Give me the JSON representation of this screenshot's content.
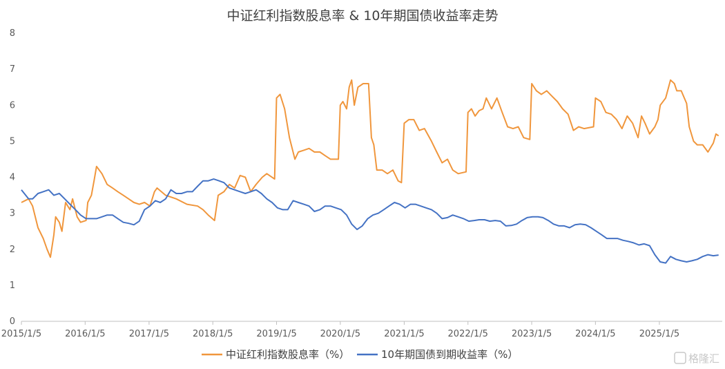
{
  "chart_data": {
    "type": "line",
    "title": "中证红利指数股息率 & 10年期国债收益率走势",
    "xlabel": "",
    "ylabel": "",
    "ylim": [
      0,
      8
    ],
    "y_ticks": [
      "0",
      "1",
      "2",
      "3",
      "4",
      "5",
      "6",
      "7",
      "8"
    ],
    "x_ticks": [
      "2015/1/5",
      "2016/1/5",
      "2017/1/5",
      "2018/1/5",
      "2019/1/5",
      "2020/1/5",
      "2021/1/5",
      "2022/1/5",
      "2023/1/5",
      "2024/1/5",
      "2025/1/5"
    ],
    "grid": false,
    "legend_position": "bottom",
    "series": [
      {
        "name": "中证红利指数股息率（%）",
        "color": "#F0963C",
        "points": [
          [
            "2015-01-05",
            3.3
          ],
          [
            "2015-02-15",
            3.4
          ],
          [
            "2015-03-10",
            3.2
          ],
          [
            "2015-04-10",
            2.6
          ],
          [
            "2015-05-10",
            2.3
          ],
          [
            "2015-06-01",
            2.0
          ],
          [
            "2015-06-20",
            1.78
          ],
          [
            "2015-07-10",
            2.4
          ],
          [
            "2015-07-20",
            2.9
          ],
          [
            "2015-08-10",
            2.75
          ],
          [
            "2015-08-25",
            2.5
          ],
          [
            "2015-09-15",
            3.3
          ],
          [
            "2015-10-10",
            3.1
          ],
          [
            "2015-10-25",
            3.4
          ],
          [
            "2015-11-20",
            2.9
          ],
          [
            "2015-12-10",
            2.75
          ],
          [
            "2016-01-10",
            2.8
          ],
          [
            "2016-01-20",
            3.3
          ],
          [
            "2016-02-10",
            3.5
          ],
          [
            "2016-02-25",
            3.9
          ],
          [
            "2016-03-10",
            4.3
          ],
          [
            "2016-04-10",
            4.1
          ],
          [
            "2016-05-10",
            3.8
          ],
          [
            "2016-06-10",
            3.7
          ],
          [
            "2016-07-10",
            3.6
          ],
          [
            "2016-08-10",
            3.5
          ],
          [
            "2016-09-10",
            3.4
          ],
          [
            "2016-10-10",
            3.3
          ],
          [
            "2016-11-10",
            3.25
          ],
          [
            "2016-12-10",
            3.3
          ],
          [
            "2017-01-10",
            3.2
          ],
          [
            "2017-02-05",
            3.6
          ],
          [
            "2017-02-20",
            3.7
          ],
          [
            "2017-04-10",
            3.5
          ],
          [
            "2017-06-10",
            3.4
          ],
          [
            "2017-08-10",
            3.25
          ],
          [
            "2017-10-10",
            3.2
          ],
          [
            "2017-11-10",
            3.1
          ],
          [
            "2017-12-10",
            2.95
          ],
          [
            "2018-01-15",
            2.8
          ],
          [
            "2018-02-05",
            3.5
          ],
          [
            "2018-03-10",
            3.6
          ],
          [
            "2018-04-10",
            3.8
          ],
          [
            "2018-05-10",
            3.7
          ],
          [
            "2018-06-10",
            4.05
          ],
          [
            "2018-07-10",
            4.0
          ],
          [
            "2018-08-10",
            3.6
          ],
          [
            "2018-09-10",
            3.8
          ],
          [
            "2018-10-15",
            4.0
          ],
          [
            "2018-11-10",
            4.1
          ],
          [
            "2018-12-25",
            3.95
          ],
          [
            "2019-01-05",
            6.2
          ],
          [
            "2019-01-25",
            6.3
          ],
          [
            "2019-02-20",
            5.9
          ],
          [
            "2019-03-20",
            5.1
          ],
          [
            "2019-04-20",
            4.5
          ],
          [
            "2019-05-10",
            4.7
          ],
          [
            "2019-06-10",
            4.75
          ],
          [
            "2019-07-10",
            4.8
          ],
          [
            "2019-08-10",
            4.7
          ],
          [
            "2019-09-10",
            4.7
          ],
          [
            "2019-10-10",
            4.6
          ],
          [
            "2019-11-10",
            4.5
          ],
          [
            "2019-12-25",
            4.5
          ],
          [
            "2020-01-05",
            6.0
          ],
          [
            "2020-01-20",
            6.1
          ],
          [
            "2020-02-10",
            5.9
          ],
          [
            "2020-02-25",
            6.5
          ],
          [
            "2020-03-10",
            6.7
          ],
          [
            "2020-03-25",
            6.0
          ],
          [
            "2020-04-15",
            6.5
          ],
          [
            "2020-05-15",
            6.6
          ],
          [
            "2020-06-15",
            6.6
          ],
          [
            "2020-07-01",
            5.1
          ],
          [
            "2020-07-15",
            4.9
          ],
          [
            "2020-08-01",
            4.2
          ],
          [
            "2020-09-01",
            4.2
          ],
          [
            "2020-10-01",
            4.1
          ],
          [
            "2020-11-01",
            4.2
          ],
          [
            "2020-12-01",
            3.9
          ],
          [
            "2020-12-20",
            3.85
          ],
          [
            "2021-01-05",
            5.5
          ],
          [
            "2021-02-01",
            5.6
          ],
          [
            "2021-03-01",
            5.6
          ],
          [
            "2021-04-01",
            5.3
          ],
          [
            "2021-05-01",
            5.35
          ],
          [
            "2021-06-10",
            5.0
          ],
          [
            "2021-07-10",
            4.7
          ],
          [
            "2021-08-10",
            4.4
          ],
          [
            "2021-09-10",
            4.5
          ],
          [
            "2021-10-10",
            4.2
          ],
          [
            "2021-11-10",
            4.1
          ],
          [
            "2021-12-25",
            4.15
          ],
          [
            "2022-01-05",
            5.8
          ],
          [
            "2022-01-25",
            5.9
          ],
          [
            "2022-02-15",
            5.7
          ],
          [
            "2022-03-10",
            5.85
          ],
          [
            "2022-04-01",
            5.9
          ],
          [
            "2022-04-20",
            6.2
          ],
          [
            "2022-05-20",
            5.9
          ],
          [
            "2022-06-20",
            6.2
          ],
          [
            "2022-07-20",
            5.8
          ],
          [
            "2022-08-20",
            5.4
          ],
          [
            "2022-09-20",
            5.35
          ],
          [
            "2022-10-20",
            5.4
          ],
          [
            "2022-11-20",
            5.1
          ],
          [
            "2022-12-25",
            5.05
          ],
          [
            "2023-01-05",
            6.6
          ],
          [
            "2023-02-01",
            6.4
          ],
          [
            "2023-03-01",
            6.3
          ],
          [
            "2023-04-01",
            6.4
          ],
          [
            "2023-05-01",
            6.25
          ],
          [
            "2023-06-01",
            6.1
          ],
          [
            "2023-07-01",
            5.9
          ],
          [
            "2023-08-01",
            5.75
          ],
          [
            "2023-09-01",
            5.3
          ],
          [
            "2023-10-01",
            5.4
          ],
          [
            "2023-11-01",
            5.35
          ],
          [
            "2023-12-25",
            5.4
          ],
          [
            "2024-01-05",
            6.2
          ],
          [
            "2024-02-05",
            6.1
          ],
          [
            "2024-03-05",
            5.8
          ],
          [
            "2024-04-05",
            5.75
          ],
          [
            "2024-05-05",
            5.6
          ],
          [
            "2024-06-05",
            5.35
          ],
          [
            "2024-07-05",
            5.7
          ],
          [
            "2024-08-05",
            5.5
          ],
          [
            "2024-09-05",
            5.1
          ],
          [
            "2024-09-25",
            5.7
          ],
          [
            "2024-10-15",
            5.5
          ],
          [
            "2024-11-10",
            5.2
          ],
          [
            "2024-12-10",
            5.4
          ],
          [
            "2024-12-28",
            5.6
          ],
          [
            "2025-01-10",
            6.0
          ],
          [
            "2025-02-10",
            6.2
          ],
          [
            "2025-03-10",
            6.7
          ],
          [
            "2025-04-01",
            6.6
          ],
          [
            "2025-04-15",
            6.4
          ],
          [
            "2025-05-10",
            6.4
          ],
          [
            "2025-06-10",
            6.05
          ],
          [
            "2025-06-25",
            5.4
          ],
          [
            "2025-07-20",
            5.0
          ],
          [
            "2025-08-10",
            4.9
          ],
          [
            "2025-09-10",
            4.9
          ],
          [
            "2025-10-10",
            4.7
          ],
          [
            "2025-11-10",
            4.95
          ],
          [
            "2025-11-25",
            5.2
          ],
          [
            "2025-12-10",
            5.15
          ]
        ]
      },
      {
        "name": "10年期国债到期收益率（%）",
        "color": "#4472C4",
        "points": [
          [
            "2015-01-05",
            3.65
          ],
          [
            "2015-02-15",
            3.4
          ],
          [
            "2015-03-10",
            3.4
          ],
          [
            "2015-04-10",
            3.55
          ],
          [
            "2015-05-10",
            3.6
          ],
          [
            "2015-06-10",
            3.65
          ],
          [
            "2015-07-10",
            3.5
          ],
          [
            "2015-08-10",
            3.55
          ],
          [
            "2015-09-10",
            3.4
          ],
          [
            "2015-10-10",
            3.25
          ],
          [
            "2015-11-10",
            3.1
          ],
          [
            "2015-12-10",
            2.95
          ],
          [
            "2016-01-10",
            2.85
          ],
          [
            "2016-02-10",
            2.85
          ],
          [
            "2016-03-10",
            2.85
          ],
          [
            "2016-04-10",
            2.9
          ],
          [
            "2016-05-10",
            2.95
          ],
          [
            "2016-06-10",
            2.95
          ],
          [
            "2016-07-10",
            2.85
          ],
          [
            "2016-08-10",
            2.75
          ],
          [
            "2016-09-10",
            2.72
          ],
          [
            "2016-10-10",
            2.68
          ],
          [
            "2016-11-10",
            2.78
          ],
          [
            "2016-12-10",
            3.1
          ],
          [
            "2017-01-10",
            3.2
          ],
          [
            "2017-02-10",
            3.35
          ],
          [
            "2017-03-10",
            3.3
          ],
          [
            "2017-04-10",
            3.4
          ],
          [
            "2017-05-10",
            3.65
          ],
          [
            "2017-06-10",
            3.55
          ],
          [
            "2017-07-10",
            3.55
          ],
          [
            "2017-08-10",
            3.6
          ],
          [
            "2017-09-10",
            3.6
          ],
          [
            "2017-10-10",
            3.75
          ],
          [
            "2017-11-10",
            3.9
          ],
          [
            "2017-12-10",
            3.9
          ],
          [
            "2018-01-10",
            3.95
          ],
          [
            "2018-02-10",
            3.9
          ],
          [
            "2018-03-10",
            3.85
          ],
          [
            "2018-04-10",
            3.7
          ],
          [
            "2018-05-10",
            3.65
          ],
          [
            "2018-06-10",
            3.6
          ],
          [
            "2018-07-10",
            3.55
          ],
          [
            "2018-08-10",
            3.6
          ],
          [
            "2018-09-10",
            3.65
          ],
          [
            "2018-10-10",
            3.55
          ],
          [
            "2018-11-10",
            3.4
          ],
          [
            "2018-12-10",
            3.3
          ],
          [
            "2019-01-10",
            3.15
          ],
          [
            "2019-02-10",
            3.1
          ],
          [
            "2019-03-10",
            3.1
          ],
          [
            "2019-04-10",
            3.35
          ],
          [
            "2019-05-10",
            3.3
          ],
          [
            "2019-06-10",
            3.25
          ],
          [
            "2019-07-10",
            3.2
          ],
          [
            "2019-08-10",
            3.05
          ],
          [
            "2019-09-10",
            3.1
          ],
          [
            "2019-10-10",
            3.2
          ],
          [
            "2019-11-10",
            3.2
          ],
          [
            "2019-12-10",
            3.15
          ],
          [
            "2020-01-10",
            3.1
          ],
          [
            "2020-02-10",
            2.95
          ],
          [
            "2020-03-10",
            2.7
          ],
          [
            "2020-04-10",
            2.55
          ],
          [
            "2020-05-10",
            2.65
          ],
          [
            "2020-06-10",
            2.85
          ],
          [
            "2020-07-10",
            2.95
          ],
          [
            "2020-08-10",
            3.0
          ],
          [
            "2020-09-10",
            3.1
          ],
          [
            "2020-10-10",
            3.2
          ],
          [
            "2020-11-10",
            3.3
          ],
          [
            "2020-12-10",
            3.25
          ],
          [
            "2021-01-10",
            3.15
          ],
          [
            "2021-02-10",
            3.25
          ],
          [
            "2021-03-10",
            3.25
          ],
          [
            "2021-04-10",
            3.2
          ],
          [
            "2021-05-10",
            3.15
          ],
          [
            "2021-06-10",
            3.1
          ],
          [
            "2021-07-10",
            3.0
          ],
          [
            "2021-08-10",
            2.85
          ],
          [
            "2021-09-10",
            2.88
          ],
          [
            "2021-10-10",
            2.95
          ],
          [
            "2021-11-10",
            2.9
          ],
          [
            "2021-12-10",
            2.85
          ],
          [
            "2022-01-10",
            2.78
          ],
          [
            "2022-02-10",
            2.8
          ],
          [
            "2022-03-10",
            2.82
          ],
          [
            "2022-04-10",
            2.82
          ],
          [
            "2022-05-10",
            2.78
          ],
          [
            "2022-06-10",
            2.8
          ],
          [
            "2022-07-10",
            2.78
          ],
          [
            "2022-08-10",
            2.65
          ],
          [
            "2022-09-10",
            2.66
          ],
          [
            "2022-10-10",
            2.7
          ],
          [
            "2022-11-10",
            2.8
          ],
          [
            "2022-12-10",
            2.88
          ],
          [
            "2023-01-10",
            2.9
          ],
          [
            "2023-02-10",
            2.9
          ],
          [
            "2023-03-10",
            2.88
          ],
          [
            "2023-04-10",
            2.8
          ],
          [
            "2023-05-10",
            2.7
          ],
          [
            "2023-06-10",
            2.65
          ],
          [
            "2023-07-10",
            2.65
          ],
          [
            "2023-08-10",
            2.6
          ],
          [
            "2023-09-10",
            2.68
          ],
          [
            "2023-10-10",
            2.7
          ],
          [
            "2023-11-10",
            2.68
          ],
          [
            "2023-12-10",
            2.6
          ],
          [
            "2024-01-10",
            2.5
          ],
          [
            "2024-02-10",
            2.4
          ],
          [
            "2024-03-10",
            2.3
          ],
          [
            "2024-04-10",
            2.3
          ],
          [
            "2024-05-10",
            2.3
          ],
          [
            "2024-06-10",
            2.25
          ],
          [
            "2024-07-10",
            2.22
          ],
          [
            "2024-08-10",
            2.18
          ],
          [
            "2024-09-10",
            2.12
          ],
          [
            "2024-10-10",
            2.15
          ],
          [
            "2024-11-10",
            2.1
          ],
          [
            "2024-12-10",
            1.85
          ],
          [
            "2025-01-10",
            1.65
          ],
          [
            "2025-02-10",
            1.62
          ],
          [
            "2025-03-10",
            1.8
          ],
          [
            "2025-04-10",
            1.72
          ],
          [
            "2025-05-10",
            1.68
          ],
          [
            "2025-06-10",
            1.65
          ],
          [
            "2025-07-10",
            1.68
          ],
          [
            "2025-08-10",
            1.72
          ],
          [
            "2025-09-10",
            1.8
          ],
          [
            "2025-10-10",
            1.85
          ],
          [
            "2025-11-10",
            1.82
          ],
          [
            "2025-12-10",
            1.84
          ]
        ]
      }
    ]
  },
  "watermark": {
    "text": "格隆汇",
    "icon": "gelonghui-logo-icon"
  }
}
